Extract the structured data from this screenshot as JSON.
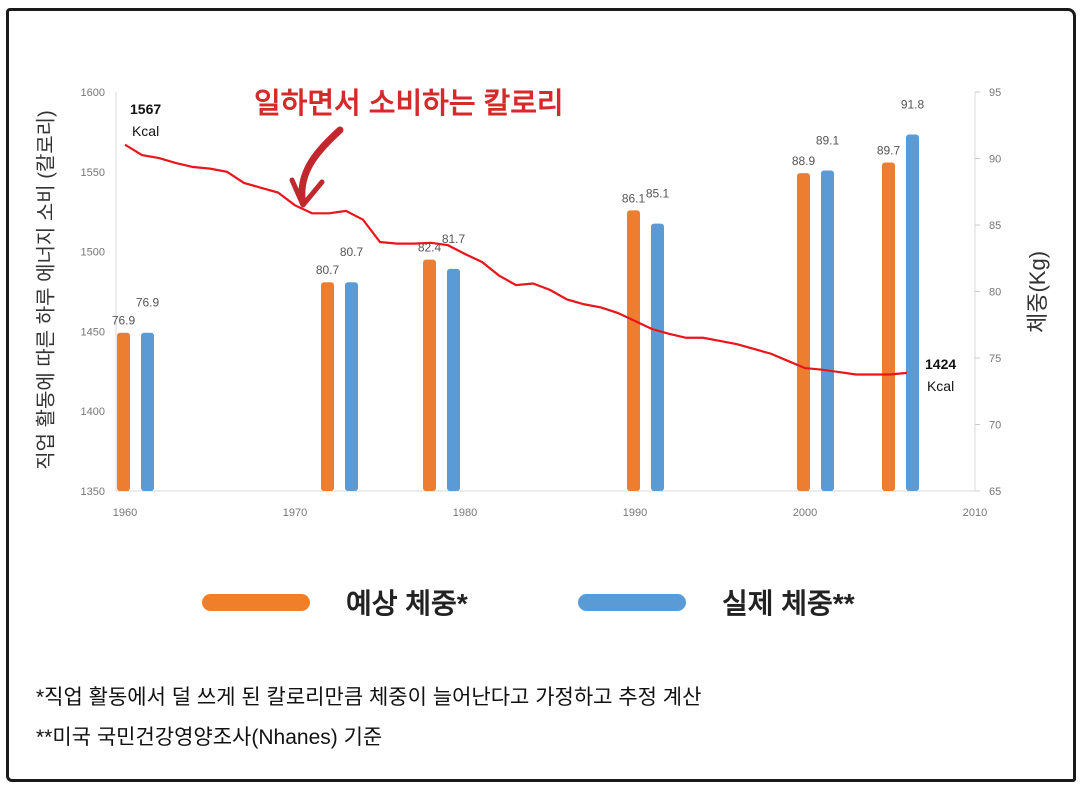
{
  "chart_data": {
    "type": "bar+line",
    "annotation": "일하면서 소비하는 칼로리",
    "ylabel_left": "직업 활동에 따른 하루 에너지 소비 (칼로리)",
    "ylabel_right": "체중(Kg)",
    "x_ticks": [
      "1960",
      "1970",
      "1980",
      "1990",
      "2000",
      "2010"
    ],
    "xlim": [
      1960,
      2010
    ],
    "ylim_left": [
      1350,
      1600
    ],
    "y_ticks_left": [
      "1350",
      "1400",
      "1450",
      "1500",
      "1550",
      "1600"
    ],
    "ylim_right": [
      65,
      95
    ],
    "y_ticks_right": [
      "65",
      "70",
      "75",
      "80",
      "85",
      "90",
      "95"
    ],
    "bar_years": [
      1960,
      1972,
      1978,
      1990,
      2000,
      2005
    ],
    "series": [
      {
        "name": "예상 체중*",
        "kind": "bar",
        "axis": "right",
        "color": "#ed7d31",
        "values": [
          76.9,
          80.7,
          82.4,
          86.1,
          88.9,
          89.7
        ],
        "labels": [
          "76.9",
          "80.7",
          "82.4",
          "86.1",
          "88.9",
          "89.7"
        ]
      },
      {
        "name": "실제 체중**",
        "kind": "bar",
        "axis": "right",
        "color": "#5b9bd5",
        "values": [
          76.9,
          80.7,
          81.7,
          85.1,
          89.1,
          91.8
        ],
        "labels": [
          "76.9",
          "80.7",
          "81.7",
          "85.1",
          "89.1",
          "91.8"
        ]
      },
      {
        "kind": "line",
        "axis": "left",
        "color": "#e8161b",
        "x": [
          1960,
          1961,
          1962,
          1963,
          1964,
          1965,
          1966,
          1967,
          1968,
          1969,
          1970,
          1971,
          1972,
          1973,
          1974,
          1975,
          1976,
          1977,
          1978,
          1979,
          1980,
          1981,
          1982,
          1983,
          1984,
          1985,
          1986,
          1987,
          1988,
          1989,
          1990,
          1991,
          1992,
          1993,
          1994,
          1995,
          1996,
          1997,
          1998,
          1999,
          2000,
          2001,
          2002,
          2003,
          2004,
          2005,
          2006
        ],
        "values": [
          1567,
          1560.5,
          1558.6,
          1555.5,
          1553,
          1552,
          1550,
          1543,
          1540,
          1537,
          1529,
          1524,
          1524,
          1525.5,
          1520,
          1506,
          1505,
          1505,
          1505.5,
          1504,
          1498.5,
          1493.5,
          1485,
          1479,
          1480,
          1476,
          1470,
          1467,
          1465,
          1461.5,
          1456.5,
          1451.5,
          1448.5,
          1446,
          1446,
          1444,
          1442,
          1439,
          1436,
          1431.5,
          1427,
          1426,
          1424.5,
          1423,
          1423,
          1423,
          1424
        ]
      }
    ],
    "line_start_label": {
      "value": "1567",
      "unit": "Kcal"
    },
    "line_end_label": {
      "value": "1424",
      "unit": "Kcal"
    }
  },
  "legend": {
    "expected": "예상 체중*",
    "actual": "실제 체중**",
    "expected_color": "#f07f2a",
    "actual_color": "#5b9bd5"
  },
  "notes": {
    "note1": "*직업 활동에서 덜 쓰게 된 칼로리만큼 체중이 늘어난다고 가정하고 추정 계산",
    "note2": "**미국 국민건강영양조사(Nhanes) 기준"
  }
}
